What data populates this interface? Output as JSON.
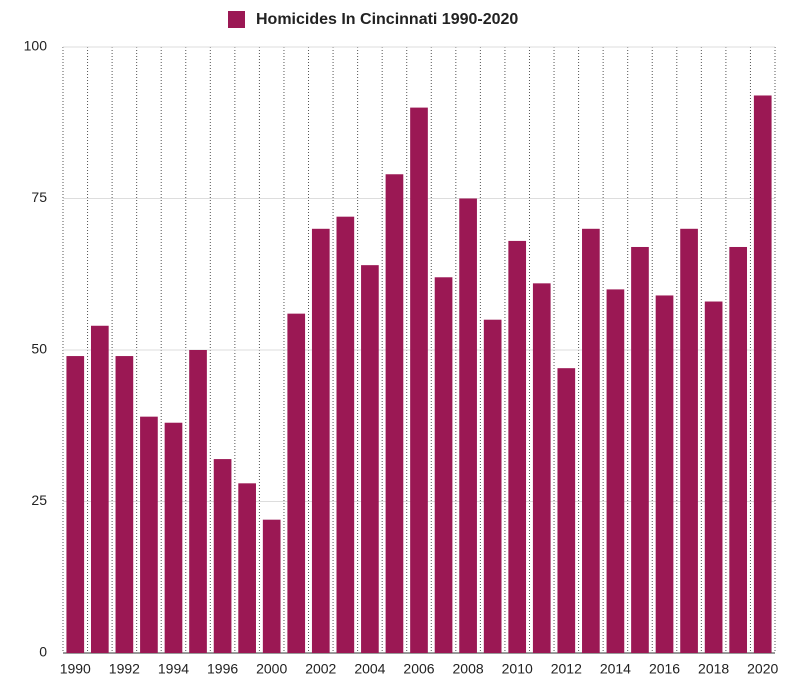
{
  "chart_data": {
    "type": "bar",
    "categories": [
      1990,
      null,
      1992,
      null,
      1994,
      null,
      1996,
      null,
      2000,
      null,
      2002,
      null,
      2004,
      null,
      2006,
      null,
      2008,
      null,
      2010,
      null,
      2012,
      null,
      2014,
      null,
      2016,
      null,
      2018,
      null,
      2020
    ],
    "series": [
      {
        "name": "Homicides In Cincinnati 1990-2020",
        "color": "#9b1854",
        "values": [
          49,
          54,
          49,
          39,
          38,
          50,
          32,
          28,
          22,
          56,
          70,
          72,
          64,
          79,
          90,
          62,
          75,
          55,
          68,
          61,
          47,
          70,
          60,
          67,
          59,
          70,
          58,
          67,
          92
        ]
      }
    ],
    "ylim": [
      0,
      100
    ],
    "yticks": [
      0,
      25,
      50,
      75,
      100
    ],
    "grid": true,
    "legend": "top"
  }
}
